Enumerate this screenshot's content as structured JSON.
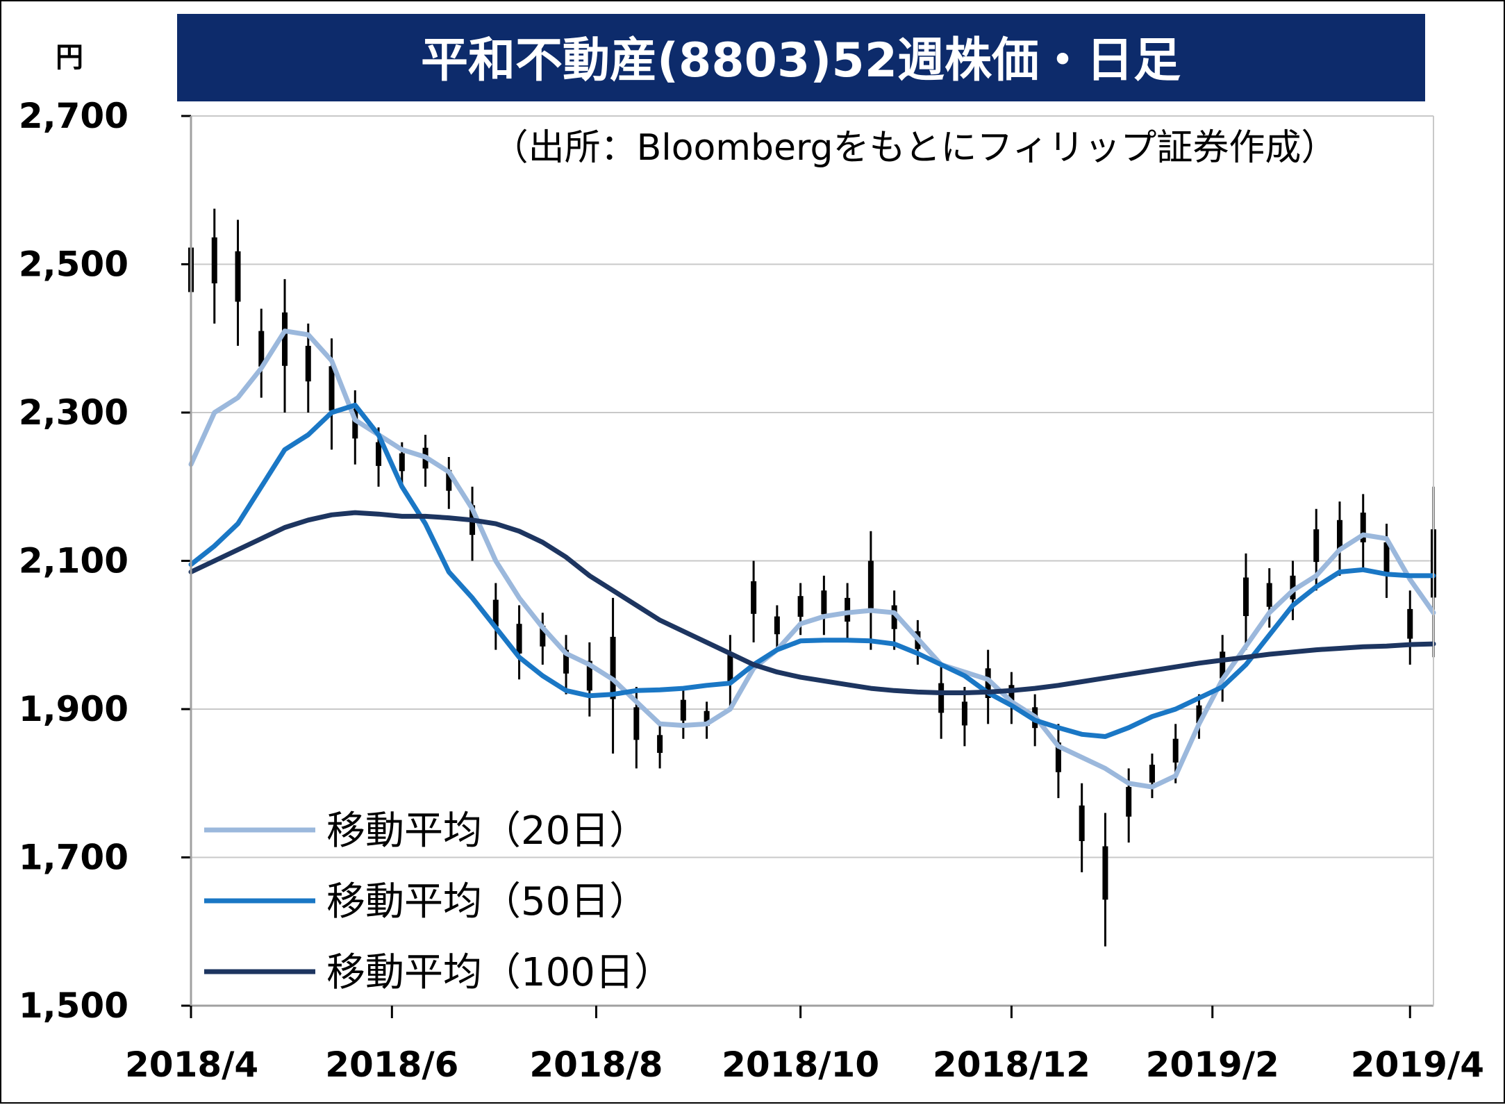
{
  "chart_data": {
    "type": "line",
    "title": "平和不動産(8803)52週株価・日足",
    "source": "（出所：Bloombergをもとにフィリップ証券作成）",
    "ylabel": "円",
    "ylim": [
      1500,
      2700
    ],
    "yticks": [
      1500,
      1700,
      1900,
      2100,
      2300,
      2500,
      2700
    ],
    "ytick_labels": [
      "1,500",
      "1,700",
      "1,900",
      "2,100",
      "2,300",
      "2,500",
      "2,700"
    ],
    "xlim": [
      "2018-04-02",
      "2019-04-08"
    ],
    "xticks": [
      "2018-04-02",
      "2018-06-01",
      "2018-08-01",
      "2018-10-01",
      "2018-12-03",
      "2019-02-01",
      "2019-04-01"
    ],
    "xtick_labels": [
      "2018/4",
      "2018/6",
      "2018/8",
      "2018/10",
      "2018/12",
      "2019/2",
      "2019/4"
    ],
    "grid": true,
    "legend_position": "bottom-left",
    "colors": {
      "title_bg": "#0d2b6b",
      "title_fg": "#ffffff",
      "ma20": "#9bb8dc",
      "ma50": "#1a77c5",
      "ma100": "#1d3560",
      "candles": "#000000",
      "grid": "#c8c8c8"
    },
    "price_range": [
      [
        "2018-04-02",
        2410,
        2560
      ],
      [
        "2018-04-09",
        2420,
        2575
      ],
      [
        "2018-04-16",
        2390,
        2560
      ],
      [
        "2018-04-23",
        2320,
        2440
      ],
      [
        "2018-04-30",
        2300,
        2480
      ],
      [
        "2018-05-07",
        2300,
        2420
      ],
      [
        "2018-05-14",
        2250,
        2400
      ],
      [
        "2018-05-21",
        2230,
        2330
      ],
      [
        "2018-05-28",
        2200,
        2280
      ],
      [
        "2018-06-04",
        2200,
        2260
      ],
      [
        "2018-06-11",
        2200,
        2270
      ],
      [
        "2018-06-18",
        2170,
        2240
      ],
      [
        "2018-06-25",
        2100,
        2200
      ],
      [
        "2018-07-02",
        1980,
        2070
      ],
      [
        "2018-07-09",
        1940,
        2040
      ],
      [
        "2018-07-16",
        1960,
        2030
      ],
      [
        "2018-07-23",
        1920,
        2000
      ],
      [
        "2018-07-30",
        1890,
        1990
      ],
      [
        "2018-08-06",
        1840,
        2050
      ],
      [
        "2018-08-13",
        1820,
        1930
      ],
      [
        "2018-08-20",
        1820,
        1880
      ],
      [
        "2018-08-27",
        1860,
        1930
      ],
      [
        "2018-09-03",
        1860,
        1910
      ],
      [
        "2018-09-10",
        1900,
        2000
      ],
      [
        "2018-09-17",
        1990,
        2100
      ],
      [
        "2018-09-24",
        1980,
        2040
      ],
      [
        "2018-10-01",
        2000,
        2070
      ],
      [
        "2018-10-08",
        2000,
        2080
      ],
      [
        "2018-10-15",
        1990,
        2070
      ],
      [
        "2018-10-22",
        1980,
        2140
      ],
      [
        "2018-10-29",
        1980,
        2060
      ],
      [
        "2018-11-05",
        1960,
        2020
      ],
      [
        "2018-11-12",
        1860,
        1960
      ],
      [
        "2018-11-19",
        1850,
        1930
      ],
      [
        "2018-11-26",
        1880,
        1980
      ],
      [
        "2018-12-03",
        1880,
        1950
      ],
      [
        "2018-12-10",
        1850,
        1920
      ],
      [
        "2018-12-17",
        1780,
        1880
      ],
      [
        "2018-12-24",
        1680,
        1800
      ],
      [
        "2018-12-31",
        1580,
        1760
      ],
      [
        "2019-01-07",
        1720,
        1820
      ],
      [
        "2019-01-14",
        1780,
        1840
      ],
      [
        "2019-01-21",
        1800,
        1880
      ],
      [
        "2019-01-28",
        1860,
        1920
      ],
      [
        "2019-02-04",
        1910,
        2000
      ],
      [
        "2019-02-11",
        1980,
        2110
      ],
      [
        "2019-02-18",
        2010,
        2090
      ],
      [
        "2019-02-25",
        2020,
        2100
      ],
      [
        "2019-03-04",
        2060,
        2170
      ],
      [
        "2019-03-11",
        2080,
        2180
      ],
      [
        "2019-03-18",
        2090,
        2190
      ],
      [
        "2019-03-25",
        2050,
        2150
      ],
      [
        "2019-04-01",
        1960,
        2060
      ],
      [
        "2019-04-08",
        1970,
        2200
      ]
    ],
    "series": [
      {
        "name": "移動平均（20日）",
        "points": [
          [
            "2018-04-02",
            2230
          ],
          [
            "2018-04-09",
            2300
          ],
          [
            "2018-04-16",
            2320
          ],
          [
            "2018-04-23",
            2360
          ],
          [
            "2018-04-30",
            2410
          ],
          [
            "2018-05-07",
            2405
          ],
          [
            "2018-05-14",
            2370
          ],
          [
            "2018-05-21",
            2290
          ],
          [
            "2018-05-28",
            2270
          ],
          [
            "2018-06-04",
            2250
          ],
          [
            "2018-06-11",
            2240
          ],
          [
            "2018-06-18",
            2220
          ],
          [
            "2018-06-25",
            2170
          ],
          [
            "2018-07-02",
            2100
          ],
          [
            "2018-07-09",
            2050
          ],
          [
            "2018-07-16",
            2010
          ],
          [
            "2018-07-23",
            1975
          ],
          [
            "2018-07-30",
            1960
          ],
          [
            "2018-08-06",
            1940
          ],
          [
            "2018-08-13",
            1910
          ],
          [
            "2018-08-20",
            1880
          ],
          [
            "2018-08-27",
            1878
          ],
          [
            "2018-09-03",
            1880
          ],
          [
            "2018-09-10",
            1900
          ],
          [
            "2018-09-17",
            1955
          ],
          [
            "2018-09-24",
            1980
          ],
          [
            "2018-10-01",
            2015
          ],
          [
            "2018-10-08",
            2025
          ],
          [
            "2018-10-15",
            2030
          ],
          [
            "2018-10-22",
            2033
          ],
          [
            "2018-10-29",
            2030
          ],
          [
            "2018-11-05",
            1995
          ],
          [
            "2018-11-12",
            1960
          ],
          [
            "2018-11-19",
            1950
          ],
          [
            "2018-11-26",
            1940
          ],
          [
            "2018-12-03",
            1910
          ],
          [
            "2018-12-10",
            1890
          ],
          [
            "2018-12-17",
            1850
          ],
          [
            "2018-12-24",
            1835
          ],
          [
            "2018-12-31",
            1820
          ],
          [
            "2019-01-07",
            1800
          ],
          [
            "2019-01-14",
            1795
          ],
          [
            "2019-01-21",
            1810
          ],
          [
            "2019-01-28",
            1880
          ],
          [
            "2019-02-04",
            1940
          ],
          [
            "2019-02-11",
            1985
          ],
          [
            "2019-02-18",
            2030
          ],
          [
            "2019-02-25",
            2060
          ],
          [
            "2019-03-04",
            2080
          ],
          [
            "2019-03-11",
            2115
          ],
          [
            "2019-03-18",
            2135
          ],
          [
            "2019-03-25",
            2130
          ],
          [
            "2019-04-01",
            2075
          ],
          [
            "2019-04-08",
            2030
          ]
        ]
      },
      {
        "name": "移動平均（50日）",
        "points": [
          [
            "2018-04-02",
            2095
          ],
          [
            "2018-04-09",
            2120
          ],
          [
            "2018-04-16",
            2150
          ],
          [
            "2018-04-23",
            2200
          ],
          [
            "2018-04-30",
            2250
          ],
          [
            "2018-05-07",
            2270
          ],
          [
            "2018-05-14",
            2300
          ],
          [
            "2018-05-21",
            2310
          ],
          [
            "2018-05-28",
            2270
          ],
          [
            "2018-06-04",
            2200
          ],
          [
            "2018-06-11",
            2150
          ],
          [
            "2018-06-18",
            2085
          ],
          [
            "2018-06-25",
            2050
          ],
          [
            "2018-07-02",
            2010
          ],
          [
            "2018-07-09",
            1970
          ],
          [
            "2018-07-16",
            1945
          ],
          [
            "2018-07-23",
            1925
          ],
          [
            "2018-07-30",
            1918
          ],
          [
            "2018-08-06",
            1920
          ],
          [
            "2018-08-13",
            1925
          ],
          [
            "2018-08-20",
            1926
          ],
          [
            "2018-08-27",
            1928
          ],
          [
            "2018-09-03",
            1932
          ],
          [
            "2018-09-10",
            1935
          ],
          [
            "2018-09-17",
            1960
          ],
          [
            "2018-09-24",
            1980
          ],
          [
            "2018-10-01",
            1992
          ],
          [
            "2018-10-08",
            1993
          ],
          [
            "2018-10-15",
            1993
          ],
          [
            "2018-10-22",
            1992
          ],
          [
            "2018-10-29",
            1988
          ],
          [
            "2018-11-05",
            1975
          ],
          [
            "2018-11-12",
            1960
          ],
          [
            "2018-11-19",
            1945
          ],
          [
            "2018-11-26",
            1922
          ],
          [
            "2018-12-03",
            1905
          ],
          [
            "2018-12-10",
            1885
          ],
          [
            "2018-12-17",
            1875
          ],
          [
            "2018-12-24",
            1866
          ],
          [
            "2018-12-31",
            1863
          ],
          [
            "2019-01-07",
            1875
          ],
          [
            "2019-01-14",
            1890
          ],
          [
            "2019-01-21",
            1900
          ],
          [
            "2019-01-28",
            1915
          ],
          [
            "2019-02-04",
            1930
          ],
          [
            "2019-02-11",
            1960
          ],
          [
            "2019-02-18",
            2000
          ],
          [
            "2019-02-25",
            2040
          ],
          [
            "2019-03-04",
            2065
          ],
          [
            "2019-03-11",
            2085
          ],
          [
            "2019-03-18",
            2088
          ],
          [
            "2019-03-25",
            2082
          ],
          [
            "2019-04-01",
            2080
          ],
          [
            "2019-04-08",
            2080
          ]
        ]
      },
      {
        "name": "移動平均（100日）",
        "points": [
          [
            "2018-04-02",
            2085
          ],
          [
            "2018-04-09",
            2100
          ],
          [
            "2018-04-16",
            2115
          ],
          [
            "2018-04-23",
            2130
          ],
          [
            "2018-04-30",
            2145
          ],
          [
            "2018-05-07",
            2155
          ],
          [
            "2018-05-14",
            2162
          ],
          [
            "2018-05-21",
            2165
          ],
          [
            "2018-05-28",
            2163
          ],
          [
            "2018-06-04",
            2160
          ],
          [
            "2018-06-11",
            2160
          ],
          [
            "2018-06-18",
            2158
          ],
          [
            "2018-06-25",
            2155
          ],
          [
            "2018-07-02",
            2150
          ],
          [
            "2018-07-09",
            2140
          ],
          [
            "2018-07-16",
            2125
          ],
          [
            "2018-07-23",
            2105
          ],
          [
            "2018-07-30",
            2080
          ],
          [
            "2018-08-06",
            2060
          ],
          [
            "2018-08-13",
            2040
          ],
          [
            "2018-08-20",
            2020
          ],
          [
            "2018-08-27",
            2005
          ],
          [
            "2018-09-03",
            1990
          ],
          [
            "2018-09-10",
            1975
          ],
          [
            "2018-09-17",
            1960
          ],
          [
            "2018-09-24",
            1950
          ],
          [
            "2018-10-01",
            1943
          ],
          [
            "2018-10-08",
            1938
          ],
          [
            "2018-10-15",
            1933
          ],
          [
            "2018-10-22",
            1928
          ],
          [
            "2018-10-29",
            1925
          ],
          [
            "2018-11-05",
            1923
          ],
          [
            "2018-11-12",
            1922
          ],
          [
            "2018-11-19",
            1922
          ],
          [
            "2018-11-26",
            1923
          ],
          [
            "2018-12-03",
            1925
          ],
          [
            "2018-12-10",
            1928
          ],
          [
            "2018-12-17",
            1932
          ],
          [
            "2018-12-24",
            1937
          ],
          [
            "2018-12-31",
            1942
          ],
          [
            "2019-01-07",
            1947
          ],
          [
            "2019-01-14",
            1952
          ],
          [
            "2019-01-21",
            1957
          ],
          [
            "2019-01-28",
            1962
          ],
          [
            "2019-02-04",
            1966
          ],
          [
            "2019-02-11",
            1970
          ],
          [
            "2019-02-18",
            1974
          ],
          [
            "2019-02-25",
            1977
          ],
          [
            "2019-03-04",
            1980
          ],
          [
            "2019-03-11",
            1982
          ],
          [
            "2019-03-18",
            1984
          ],
          [
            "2019-03-25",
            1985
          ],
          [
            "2019-04-01",
            1987
          ],
          [
            "2019-04-08",
            1988
          ]
        ]
      }
    ]
  }
}
